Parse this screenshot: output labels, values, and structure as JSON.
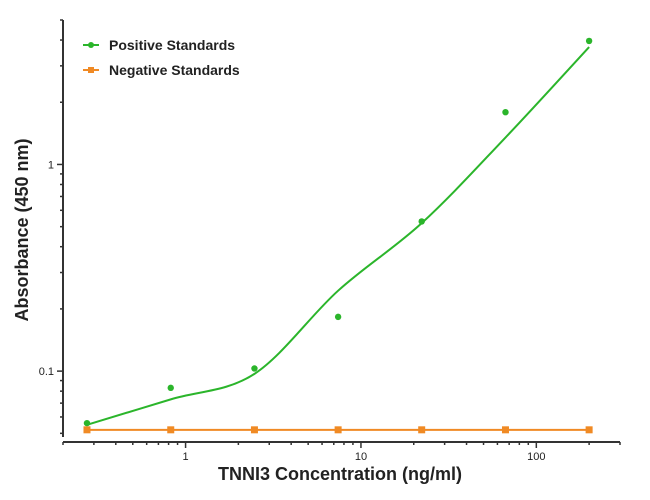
{
  "chart_data": {
    "type": "scatter",
    "title": "",
    "xlabel": "TNNI3 Concentration (ng/ml)",
    "ylabel": "Absorbance (450 nm)",
    "x_scale": "log",
    "y_scale": "log",
    "xlim": [
      0.2,
      300
    ],
    "ylim": [
      0.048,
      5
    ],
    "x_ticks": [
      {
        "value": 1,
        "label": "1"
      },
      {
        "value": 10,
        "label": "10"
      },
      {
        "value": 100,
        "label": "100"
      }
    ],
    "y_ticks": [
      {
        "value": 0.1,
        "label": "0.1"
      },
      {
        "value": 1,
        "label": "1"
      }
    ],
    "grid": false,
    "legend_position": "top-left",
    "series": [
      {
        "name": "Positive Standards",
        "color": "#2bb52b",
        "marker": "circle",
        "x": [
          0.274,
          0.823,
          2.47,
          7.41,
          22.2,
          66.7,
          200
        ],
        "y": [
          0.056,
          0.083,
          0.103,
          0.183,
          0.53,
          1.79,
          3.96
        ],
        "fit_curve": {
          "x": [
            0.274,
            0.823,
            2.47,
            7.41,
            22.2,
            66.7,
            200
          ],
          "y": [
            0.055,
            0.073,
            0.097,
            0.245,
            0.52,
            1.35,
            3.7
          ]
        }
      },
      {
        "name": "Negative Standards",
        "color": "#f08a24",
        "marker": "square",
        "x": [
          0.274,
          0.823,
          2.47,
          7.41,
          22.2,
          66.7,
          200
        ],
        "y": [
          0.052,
          0.052,
          0.052,
          0.052,
          0.052,
          0.052,
          0.052
        ]
      }
    ]
  }
}
